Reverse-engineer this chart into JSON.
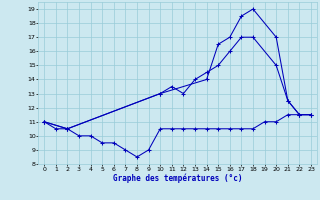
{
  "title": "Graphe des températures (°c)",
  "xlim": [
    -0.5,
    23.5
  ],
  "ylim": [
    8,
    19.5
  ],
  "xticks": [
    0,
    1,
    2,
    3,
    4,
    5,
    6,
    7,
    8,
    9,
    10,
    11,
    12,
    13,
    14,
    15,
    16,
    17,
    18,
    19,
    20,
    21,
    22,
    23
  ],
  "yticks": [
    8,
    9,
    10,
    11,
    12,
    13,
    14,
    15,
    16,
    17,
    18,
    19
  ],
  "background_color": "#cce8f0",
  "grid_color": "#99ccd9",
  "line_color": "#0000bb",
  "series": [
    {
      "x": [
        0,
        1,
        2,
        3,
        4,
        5,
        6,
        7,
        8,
        9,
        10,
        11,
        12,
        13,
        14,
        15,
        16,
        17,
        18,
        19,
        20,
        21,
        22,
        23
      ],
      "y": [
        11,
        10.5,
        10.5,
        10,
        10,
        9.5,
        9.5,
        9,
        8.5,
        9,
        10.5,
        10.5,
        10.5,
        10.5,
        10.5,
        10.5,
        10.5,
        10.5,
        10.5,
        11,
        11,
        11.5,
        11.5,
        11.5
      ]
    },
    {
      "x": [
        0,
        2,
        10,
        11,
        12,
        13,
        14,
        15,
        16,
        17,
        18,
        20,
        21,
        22,
        23
      ],
      "y": [
        11,
        10.5,
        13,
        13.5,
        13,
        14,
        14.5,
        15,
        16,
        17,
        17,
        15,
        12.5,
        11.5,
        11.5
      ]
    },
    {
      "x": [
        0,
        2,
        10,
        14,
        15,
        16,
        17,
        18,
        20,
        21,
        22,
        23
      ],
      "y": [
        11,
        10.5,
        13,
        14,
        16.5,
        17,
        18.5,
        19,
        17,
        12.5,
        11.5,
        11.5
      ]
    }
  ]
}
